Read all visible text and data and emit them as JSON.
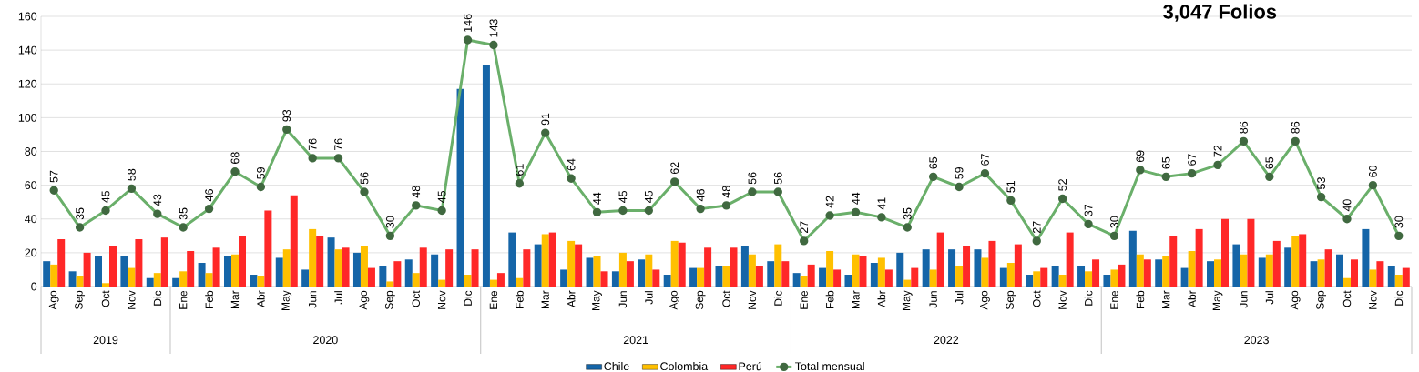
{
  "chart_data": {
    "type": "bar",
    "x": [
      "2019-08",
      "2019-09",
      "2019-10",
      "2019-11",
      "2019-12",
      "2020-01",
      "2020-02",
      "2020-03",
      "2020-04",
      "2020-05",
      "2020-06",
      "2020-07",
      "2020-08",
      "2020-09",
      "2020-10",
      "2020-11",
      "2020-12",
      "2021-01",
      "2021-02",
      "2021-03",
      "2021-04",
      "2021-05",
      "2021-06",
      "2021-07",
      "2021-08",
      "2021-09",
      "2021-10",
      "2021-11",
      "2021-12",
      "2022-01",
      "2022-02",
      "2022-03",
      "2022-04",
      "2022-05",
      "2022-06",
      "2022-07",
      "2022-08",
      "2022-09",
      "2022-10",
      "2022-11",
      "2022-12",
      "2023-01",
      "2023-02",
      "2023-03",
      "2023-04",
      "2023-05",
      "2023-06",
      "2023-07",
      "2023-08",
      "2023-09",
      "2023-10",
      "2023-11",
      "2023-12"
    ],
    "series": [
      {
        "name": "Chile",
        "color": "#1565a8",
        "values": [
          15,
          9,
          18,
          18,
          5,
          5,
          14,
          18,
          7,
          17,
          10,
          29,
          20,
          12,
          16,
          19,
          117,
          131,
          32,
          25,
          10,
          17,
          9,
          16,
          7,
          11,
          12,
          24,
          15,
          8,
          11,
          7,
          14,
          20,
          22,
          22,
          22,
          11,
          7,
          12,
          12,
          7,
          33,
          16,
          11,
          15,
          25,
          17,
          23,
          15,
          19,
          34,
          12
        ]
      },
      {
        "name": "Colombia",
        "color": "#ffc000",
        "values": [
          13,
          6,
          2,
          11,
          8,
          9,
          8,
          19,
          6,
          22,
          34,
          22,
          24,
          3,
          8,
          4,
          7,
          4,
          5,
          31,
          27,
          18,
          20,
          19,
          27,
          11,
          12,
          19,
          25,
          6,
          21,
          19,
          17,
          4,
          10,
          12,
          17,
          14,
          9,
          7,
          9,
          10,
          19,
          18,
          21,
          16,
          19,
          19,
          30,
          16,
          5,
          10,
          7
        ]
      },
      {
        "name": "Perú",
        "color": "#ff2828",
        "values": [
          28,
          20,
          24,
          28,
          29,
          21,
          23,
          30,
          45,
          54,
          30,
          23,
          11,
          15,
          23,
          22,
          22,
          8,
          22,
          32,
          25,
          9,
          15,
          10,
          26,
          23,
          23,
          12,
          15,
          13,
          10,
          18,
          10,
          11,
          32,
          24,
          27,
          25,
          11,
          32,
          16,
          13,
          16,
          30,
          34,
          40,
          40,
          27,
          31,
          22,
          16,
          15,
          11
        ]
      },
      {
        "name": "Total mensual",
        "type": "line",
        "color": "#6aaf6a",
        "values": [
          57,
          35,
          45,
          58,
          43,
          35,
          46,
          68,
          59,
          93,
          76,
          76,
          56,
          30,
          48,
          45,
          146,
          143,
          61,
          91,
          64,
          44,
          45,
          45,
          62,
          46,
          48,
          56,
          56,
          27,
          42,
          44,
          41,
          35,
          65,
          59,
          67,
          51,
          27,
          52,
          37,
          30,
          69,
          65,
          67,
          72,
          86,
          65,
          86,
          53,
          40,
          60,
          30
        ],
        "value_labels": [
          "57",
          "35",
          "45",
          "58",
          "43",
          "35",
          "46",
          "68",
          "59",
          "93",
          "76",
          "76",
          "56",
          "30",
          "48",
          "45",
          "146",
          "143",
          "61",
          "91",
          "64",
          "44",
          "45",
          "45",
          "62",
          "46",
          "48",
          "56",
          "56",
          "27",
          "42",
          "44",
          "41",
          "35",
          "65",
          "59",
          "67",
          "51",
          "27",
          "52",
          "37",
          "30",
          "69",
          "65",
          "67",
          "72",
          "86",
          "65",
          "86",
          "53",
          "40",
          "60",
          "30"
        ]
      }
    ],
    "xlim": [
      "2019-07-16",
      "2023-12-16"
    ],
    "xticks": [
      {
        "value": "2019-08",
        "label": "Ago"
      },
      {
        "value": "2019-09",
        "label": "Sep"
      },
      {
        "value": "2019-10",
        "label": "Oct"
      },
      {
        "value": "2019-11",
        "label": "Nov"
      },
      {
        "value": "2019-12",
        "label": "Dic"
      },
      {
        "value": "2020-01",
        "label": "Ene"
      },
      {
        "value": "2020-02",
        "label": "Feb"
      },
      {
        "value": "2020-03",
        "label": "Mar"
      },
      {
        "value": "2020-04",
        "label": "Abr"
      },
      {
        "value": "2020-05",
        "label": "May"
      },
      {
        "value": "2020-06",
        "label": "Jun"
      },
      {
        "value": "2020-07",
        "label": "Jul"
      },
      {
        "value": "2020-08",
        "label": "Ago"
      },
      {
        "value": "2020-09",
        "label": "Sep"
      },
      {
        "value": "2020-10",
        "label": "Oct"
      },
      {
        "value": "2020-11",
        "label": "Nov"
      },
      {
        "value": "2020-12",
        "label": "Dic"
      },
      {
        "value": "2021-01",
        "label": "Ene"
      },
      {
        "value": "2021-02",
        "label": "Feb"
      },
      {
        "value": "2021-03",
        "label": "Mar"
      },
      {
        "value": "2021-04",
        "label": "Abr"
      },
      {
        "value": "2021-05",
        "label": "May"
      },
      {
        "value": "2021-06",
        "label": "Jun"
      },
      {
        "value": "2021-07",
        "label": "Jul"
      },
      {
        "value": "2021-08",
        "label": "Ago"
      },
      {
        "value": "2021-09",
        "label": "Sep"
      },
      {
        "value": "2021-10",
        "label": "Oct"
      },
      {
        "value": "2021-11",
        "label": "Nov"
      },
      {
        "value": "2021-12",
        "label": "Dic"
      },
      {
        "value": "2022-01",
        "label": "Ene"
      },
      {
        "value": "2022-02",
        "label": "Feb"
      },
      {
        "value": "2022-03",
        "label": "Mar"
      },
      {
        "value": "2022-04",
        "label": "Abr"
      },
      {
        "value": "2022-05",
        "label": "May"
      },
      {
        "value": "2022-06",
        "label": "Jun"
      },
      {
        "value": "2022-07",
        "label": "Jul"
      },
      {
        "value": "2022-08",
        "label": "Ago"
      },
      {
        "value": "2022-09",
        "label": "Sep"
      },
      {
        "value": "2022-10",
        "label": "Oct"
      },
      {
        "value": "2022-11",
        "label": "Nov"
      },
      {
        "value": "2022-12",
        "label": "Dic"
      },
      {
        "value": "2023-01",
        "label": "Ene"
      },
      {
        "value": "2023-02",
        "label": "Feb"
      },
      {
        "value": "2023-03",
        "label": "Mar"
      },
      {
        "value": "2023-04",
        "label": "Abr"
      },
      {
        "value": "2023-05",
        "label": "May"
      },
      {
        "value": "2023-06",
        "label": "Jun"
      },
      {
        "value": "2023-07",
        "label": "Jul"
      },
      {
        "value": "2023-08",
        "label": "Ago"
      },
      {
        "value": "2023-09",
        "label": "Sep"
      },
      {
        "value": "2023-10",
        "label": "Oct"
      },
      {
        "value": "2023-11",
        "label": "Nov"
      },
      {
        "value": "2023-12",
        "label": "Dic"
      }
    ],
    "x2lim": [
      "2019-07-16",
      "2023-12-16"
    ],
    "x2ticks": [
      {
        "value": "2019-10",
        "label": "2019"
      },
      {
        "value": "2020-06-16",
        "label": "2020"
      },
      {
        "value": "2021-06-16",
        "label": "2021"
      },
      {
        "value": "2022-06-16",
        "label": "2022"
      },
      {
        "value": "2023-06-16",
        "label": "2023"
      }
    ],
    "ylim": [
      0,
      160
    ],
    "yticks": [
      0,
      20,
      40,
      60,
      80,
      100,
      120,
      140,
      160
    ],
    "grid": "y",
    "legend": "bottom",
    "marker": "circle",
    "annotations": [
      "3,047 Folios"
    ]
  }
}
